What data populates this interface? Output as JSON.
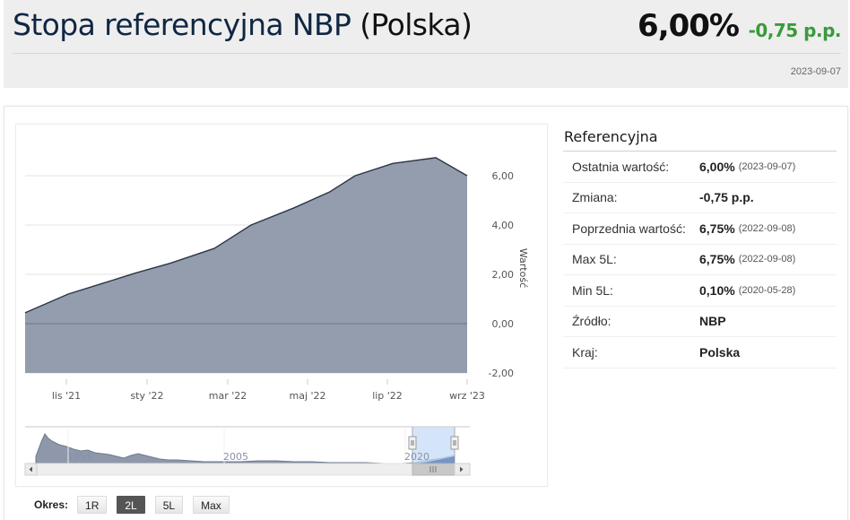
{
  "header": {
    "title": "Stopa referencyjna NBP",
    "country": "(Polska)",
    "value": "6,00%",
    "change": "-0,75 p.p.",
    "date": "2023-09-07"
  },
  "period": {
    "label": "Okres:",
    "buttons": [
      {
        "label": "1R",
        "active": false
      },
      {
        "label": "2L",
        "active": true
      },
      {
        "label": "5L",
        "active": false
      },
      {
        "label": "Max",
        "active": false
      }
    ]
  },
  "info": {
    "heading": "Referencyjna",
    "rows": [
      {
        "key": "Ostatnia wartość:",
        "value": "6,00%",
        "date": "(2023-09-07)"
      },
      {
        "key": "Zmiana:",
        "value": "-0,75 p.p.",
        "date": ""
      },
      {
        "key": "Poprzednia wartość:",
        "value": "6,75%",
        "date": "(2022-09-08)"
      },
      {
        "key": "Max 5L:",
        "value": "6,75%",
        "date": "(2022-09-08)"
      },
      {
        "key": "Min 5L:",
        "value": "0,10%",
        "date": "(2020-05-28)"
      },
      {
        "key": "Źródło:",
        "value": "NBP",
        "date": ""
      },
      {
        "key": "Kraj:",
        "value": "Polska",
        "date": ""
      }
    ]
  },
  "chart_data": {
    "type": "area",
    "title": "",
    "xlabel": "",
    "ylabel": "Wartość",
    "ylim": [
      -2,
      7
    ],
    "yticks": [
      "-2,00",
      "0,00",
      "2,00",
      "4,00",
      "6,00"
    ],
    "xticks": [
      "lis '21",
      "sty '22",
      "mar '22",
      "maj '22",
      "lip '22",
      "wrz '23"
    ],
    "grid": true,
    "series": [
      {
        "name": "Referencyjna",
        "x": [
          "paź '21",
          "lis '21",
          "gru '21",
          "sty '22",
          "lut '22",
          "mar '22",
          "kwi '22",
          "maj '22",
          "cze '22",
          "lip '22",
          "sie '22",
          "wrz '22",
          "wrz '23"
        ],
        "values": [
          0.44,
          1.2,
          1.65,
          2.05,
          2.45,
          3.05,
          4.0,
          4.7,
          5.35,
          6.0,
          6.5,
          6.73,
          6.0
        ]
      }
    ],
    "colors": {
      "fill": "#8e98aa",
      "line": "#2c3646",
      "grid": "#e3e3e3",
      "zero_line": "#6b7587"
    },
    "navigator": {
      "xticks": [
        "1995",
        "2005",
        "2020"
      ],
      "selected_range": [
        "2021",
        "2023"
      ]
    }
  }
}
